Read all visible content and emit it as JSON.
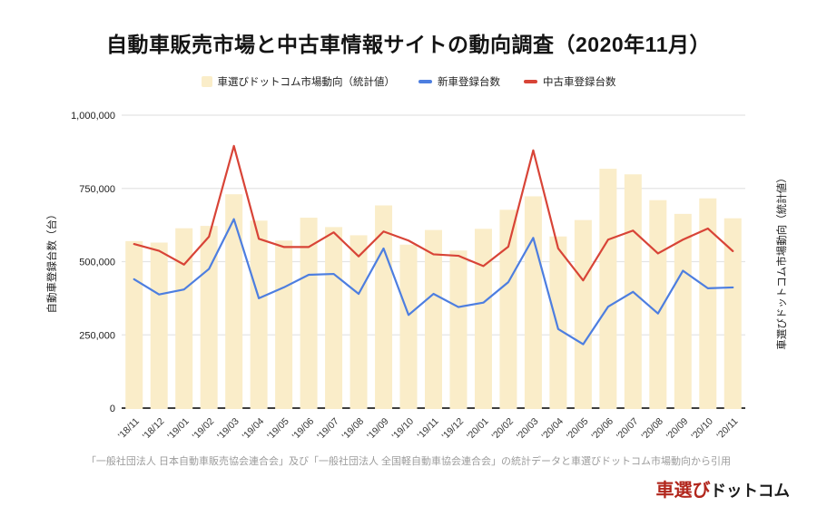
{
  "title": "自動車販売市場と中古車情報サイトの動向調査（2020年11月）",
  "legend": {
    "bar_label": "車選びドットコム市場動向（統計値）",
    "new_car_label": "新車登録台数",
    "used_car_label": "中古車登録台数"
  },
  "colors": {
    "bar": "#FAEDC9",
    "new_car_line": "#4D7EE0",
    "used_car_line": "#D84437",
    "grid": "#E4E4E4",
    "baseline": "#3D3D3D",
    "tick_text": "#1c1c1c",
    "xlabel_text": "#333333"
  },
  "y_axis": {
    "title": "自動車登録台数（台）"
  },
  "y2_axis": {
    "title": "車選びドットコム市場動向（統計値）"
  },
  "footnote": "「一般社団法人 日本自動車販売協会連合会」及び「一般社団法人 全国軽自動車協会連合会」の統計データと車選びドットコム市場動向から引用",
  "logo": {
    "red_part": "車選び",
    "black_part": "ドットコム"
  },
  "chart_data": {
    "type": "bar",
    "subtype": "bar+line combo",
    "title": "自動車販売市場と中古車情報サイトの動向調査（2020年11月）",
    "xlabel": "",
    "ylabel": "自動車登録台数（台）",
    "ylabel_right": "車選びドットコム市場動向（統計値）",
    "ylim": [
      0,
      1000000
    ],
    "grid": true,
    "legend_position": "top",
    "yticks": [
      0,
      250000,
      500000,
      750000,
      1000000
    ],
    "ytick_labels": [
      "0",
      "250,000",
      "500,000",
      "750,000",
      "1,000,000"
    ],
    "categories": [
      "'18/11",
      "'18/12",
      "'19/01",
      "'19/02",
      "'19/03",
      "'19/04",
      "'19/05",
      "'19/06",
      "'19/07",
      "'19/08",
      "'19/09",
      "'19/10",
      "'19/11",
      "'19/12",
      "'20/01",
      "'20/02",
      "'20/03",
      "'20/04",
      "'20/05",
      "'20/06",
      "'20/07",
      "'20/08",
      "'20/09",
      "'20/10",
      "'20/11"
    ],
    "series": [
      {
        "name": "車選びドットコム市場動向（統計値）",
        "type": "bar",
        "color": "#FAEDC9",
        "values": [
          570000,
          565000,
          614000,
          622000,
          730000,
          640000,
          572000,
          650000,
          618000,
          590000,
          692000,
          558000,
          608000,
          538000,
          612000,
          677000,
          723000,
          586000,
          642000,
          817000,
          798000,
          710000,
          663000,
          716000,
          648000
        ]
      },
      {
        "name": "新車登録台数",
        "type": "line",
        "color": "#4D7EE0",
        "values": [
          440000,
          388000,
          405000,
          475000,
          645000,
          375000,
          412000,
          455000,
          458000,
          390000,
          545000,
          318000,
          390000,
          345000,
          360000,
          430000,
          581000,
          270000,
          218000,
          346000,
          397000,
          323000,
          469000,
          409000,
          412000
        ]
      },
      {
        "name": "中古車登録台数",
        "type": "line",
        "color": "#D84437",
        "values": [
          560000,
          537000,
          490000,
          585000,
          895000,
          578000,
          550000,
          550000,
          600000,
          518000,
          603000,
          572000,
          525000,
          520000,
          485000,
          551000,
          880000,
          545000,
          436000,
          575000,
          606000,
          528000,
          575000,
          613000,
          536000
        ]
      }
    ]
  }
}
